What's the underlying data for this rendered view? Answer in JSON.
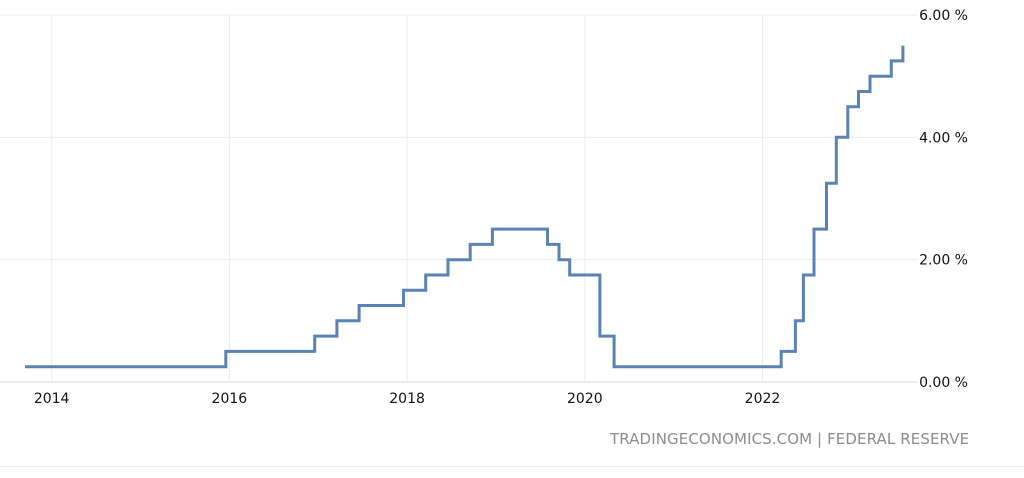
{
  "source": "TRADINGECONOMICS.COM | FEDERAL RESERVE",
  "chart_data": {
    "type": "line",
    "step": true,
    "title": "",
    "xlabel": "",
    "ylabel": "",
    "x_ticks": [
      "2014",
      "2016",
      "2018",
      "2020",
      "2022"
    ],
    "y_ticks": [
      "0.00 %",
      "2.00 %",
      "4.00 %",
      "6.00 %"
    ],
    "xlim": [
      2013.7,
      2023.75
    ],
    "ylim": [
      0,
      6
    ],
    "grid": true,
    "line_color": "#5b82b5",
    "series": [
      {
        "x": [
          2013.7,
          2015.96,
          2016.96,
          2017.21,
          2017.46,
          2017.96,
          2018.21,
          2018.46,
          2018.71,
          2018.96,
          2019.58,
          2019.71,
          2019.83,
          2020.17,
          2020.33,
          2022.21,
          2022.37,
          2022.46,
          2022.58,
          2022.72,
          2022.83,
          2022.96,
          2023.08,
          2023.21,
          2023.45,
          2023.58
        ],
        "y": [
          0.25,
          0.5,
          0.75,
          1.0,
          1.25,
          1.5,
          1.75,
          2.0,
          2.25,
          2.5,
          2.25,
          2.0,
          1.75,
          0.75,
          0.25,
          0.5,
          1.0,
          1.75,
          2.5,
          3.25,
          4.0,
          4.5,
          4.75,
          5.0,
          5.25,
          5.5
        ]
      }
    ]
  }
}
